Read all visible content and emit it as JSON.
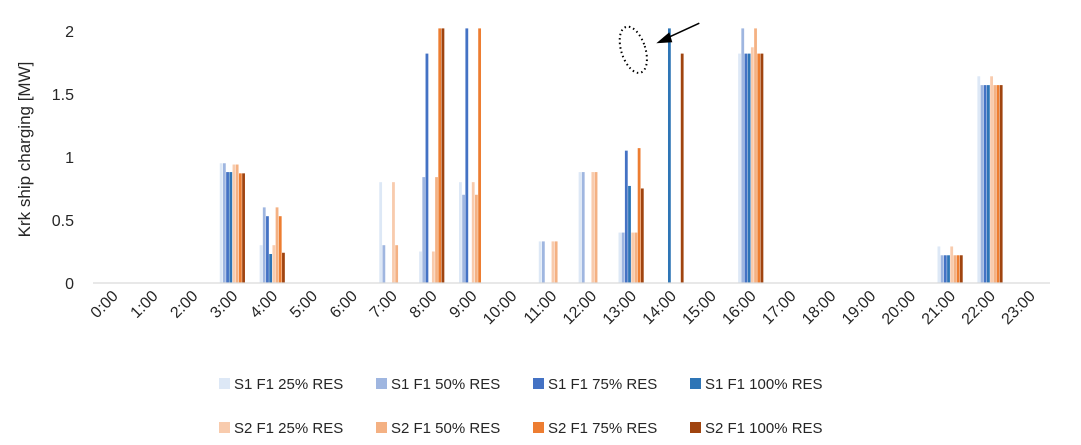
{
  "chart_data": {
    "type": "bar",
    "title": "",
    "xlabel": "",
    "ylabel": "Krk ship charging [MW]",
    "ylim": [
      0,
      2.15
    ],
    "yticks": [
      0,
      0.5,
      1,
      1.5,
      2
    ],
    "ytick_labels": [
      "0",
      "0.5",
      "1",
      "1.5",
      "2"
    ],
    "grid": false,
    "legend_position": "bottom",
    "categories": [
      "0:00",
      "1:00",
      "2:00",
      "3:00",
      "4:00",
      "5:00",
      "6:00",
      "7:00",
      "8:00",
      "9:00",
      "10:00",
      "11:00",
      "12:00",
      "13:00",
      "14:00",
      "15:00",
      "16:00",
      "17:00",
      "18:00",
      "19:00",
      "20:00",
      "21:00",
      "22:00",
      "23:00"
    ],
    "series": [
      {
        "name": "S1 F1 25% RES",
        "color": "#dde8f6",
        "values": [
          0,
          0,
          0,
          0.95,
          0.3,
          0,
          0,
          0.8,
          0.25,
          0.8,
          0,
          0.33,
          0.88,
          0.4,
          0,
          0,
          1.82,
          0,
          0,
          0,
          0,
          0.29,
          1.64,
          0
        ]
      },
      {
        "name": "S1 F1 50% RES",
        "color": "#9fb6e0",
        "values": [
          0,
          0,
          0,
          0.95,
          0.6,
          0,
          0,
          0.3,
          0.84,
          0.7,
          0,
          0.33,
          0.88,
          0.4,
          0,
          0,
          2.02,
          0,
          0,
          0,
          0,
          0.22,
          1.57,
          0
        ]
      },
      {
        "name": "S1 F1 75% RES",
        "color": "#4472c4",
        "values": [
          0,
          0,
          0,
          0.88,
          0.53,
          0,
          0,
          0,
          1.82,
          2.02,
          0,
          0,
          0,
          1.05,
          0,
          0,
          1.82,
          0,
          0,
          0,
          0,
          0.22,
          1.57,
          0
        ]
      },
      {
        "name": "S1 F1 100% RES",
        "color": "#2e75b6",
        "values": [
          0,
          0,
          0,
          0.88,
          0.23,
          0,
          0,
          0,
          0,
          0,
          0,
          0,
          0,
          0.77,
          2.02,
          0,
          1.82,
          0,
          0,
          0,
          0,
          0.22,
          1.57,
          0
        ]
      },
      {
        "name": "S2 F1 25% RES",
        "color": "#f8cbad",
        "values": [
          0,
          0,
          0,
          0.94,
          0.3,
          0,
          0,
          0.8,
          0.25,
          0.8,
          0,
          0.33,
          0.88,
          0.4,
          0,
          0,
          1.87,
          0,
          0,
          0,
          0,
          0.29,
          1.64,
          0
        ]
      },
      {
        "name": "S2 F1 50% RES",
        "color": "#f4b183",
        "values": [
          0,
          0,
          0,
          0.94,
          0.6,
          0,
          0,
          0.3,
          0.84,
          0.7,
          0,
          0.33,
          0.88,
          0.4,
          0,
          0,
          2.02,
          0,
          0,
          0,
          0,
          0.22,
          1.57,
          0
        ]
      },
      {
        "name": "S2 F1 75% RES",
        "color": "#ed7d31",
        "values": [
          0,
          0,
          0,
          0.87,
          0.53,
          0,
          0,
          0,
          2.02,
          2.02,
          0,
          0,
          0,
          1.07,
          0,
          0,
          1.82,
          0,
          0,
          0,
          0,
          0.22,
          1.57,
          0
        ]
      },
      {
        "name": "S2 F1 100% RES",
        "color": "#a0440f",
        "values": [
          0,
          0,
          0,
          0.87,
          0.24,
          0,
          0,
          0,
          2.02,
          0,
          0,
          0,
          0,
          0.75,
          1.82,
          0,
          1.82,
          0,
          0,
          0,
          0,
          0.22,
          1.57,
          0
        ]
      }
    ],
    "annotations": [
      {
        "type": "dotted-ellipse",
        "around_category": "13:00",
        "around_value": 1.85
      },
      {
        "type": "arrow",
        "points_to_category": "13:00",
        "points_to_value": 1.95
      }
    ]
  }
}
